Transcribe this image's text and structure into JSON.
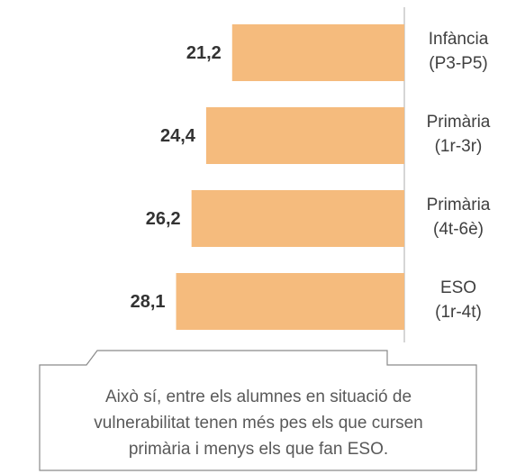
{
  "chart_data": {
    "type": "bar",
    "categories": [
      "Infància\n(P3-P5)",
      "Primària\n(1r-3r)",
      "Primària\n(4t-6è)",
      "ESO\n(1r-4t)"
    ],
    "values": [
      21.2,
      24.4,
      26.2,
      28.1
    ],
    "value_labels": [
      "21,2",
      "24,4",
      "26,2",
      "28,1"
    ],
    "color": "#f5bb7d",
    "annotation": [
      "Això sí, entre els alumnes en situació de",
      "vulnerabilitat tenen més pes els que cursen",
      "primària i menys els que fan ESO."
    ]
  }
}
